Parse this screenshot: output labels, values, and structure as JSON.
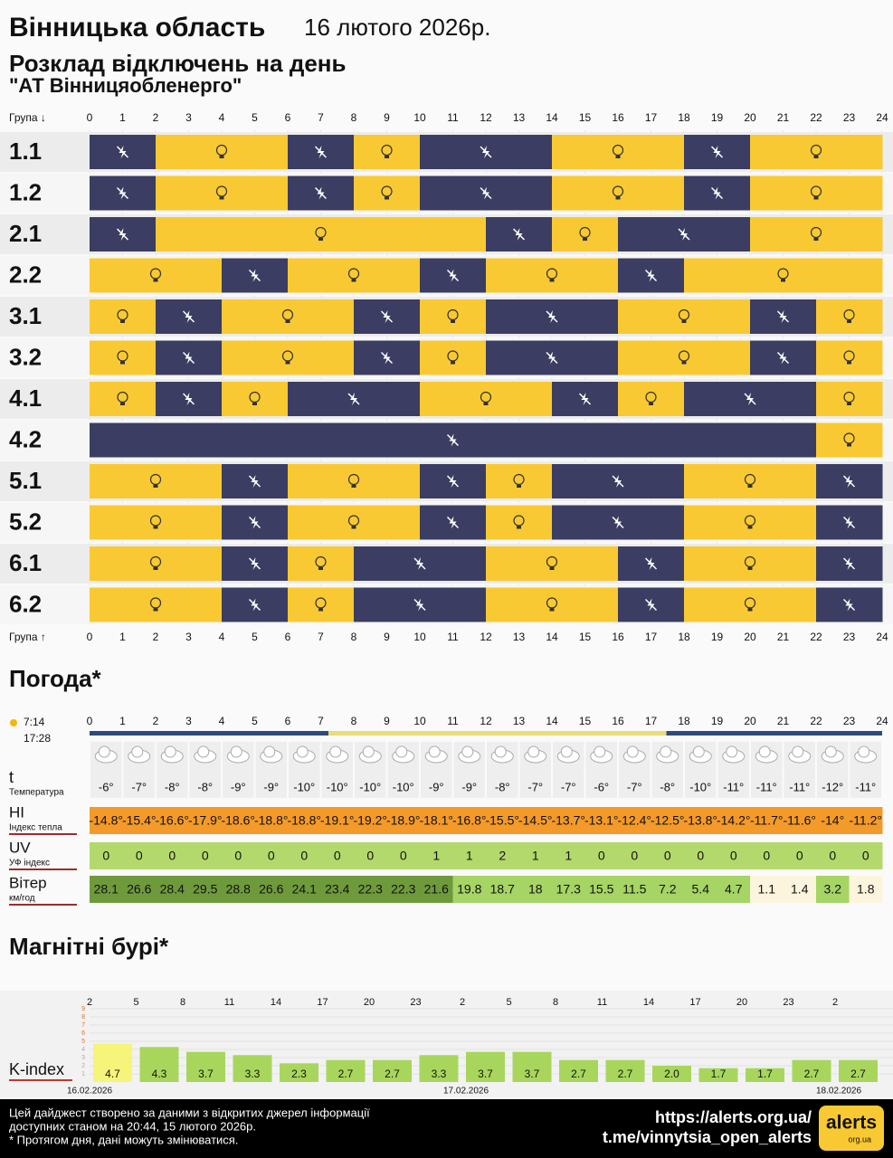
{
  "header": {
    "region": "Вінницька область",
    "date": "16 лютого 2026р.",
    "subtitle": "Розклад відключень на день",
    "company": "\"АТ Вінницяобленерго\""
  },
  "schedule": {
    "group_top": "Група ↓",
    "group_bottom": "Група ↑",
    "off_color": "#3b3d63",
    "on_color": "#f8c932",
    "hours": [
      0,
      1,
      2,
      3,
      4,
      5,
      6,
      7,
      8,
      9,
      10,
      11,
      12,
      13,
      14,
      15,
      16,
      17,
      18,
      19,
      20,
      21,
      22,
      23,
      24
    ],
    "groups": [
      {
        "name": "1.1",
        "off": [
          1,
          1,
          0,
          0,
          0,
          0,
          1,
          1,
          0,
          0,
          1,
          1,
          1,
          1,
          0,
          0,
          0,
          0,
          1,
          1,
          0,
          0,
          0,
          0
        ]
      },
      {
        "name": "1.2",
        "off": [
          1,
          1,
          0,
          0,
          0,
          0,
          1,
          1,
          0,
          0,
          1,
          1,
          1,
          1,
          0,
          0,
          0,
          0,
          1,
          1,
          0,
          0,
          0,
          0
        ]
      },
      {
        "name": "2.1",
        "off": [
          1,
          1,
          0,
          0,
          0,
          0,
          0,
          0,
          0,
          0,
          0,
          0,
          1,
          1,
          0,
          0,
          1,
          1,
          1,
          1,
          0,
          0,
          0,
          0
        ]
      },
      {
        "name": "2.2",
        "off": [
          0,
          0,
          0,
          0,
          1,
          1,
          0,
          0,
          0,
          0,
          1,
          1,
          0,
          0,
          0,
          0,
          1,
          1,
          0,
          0,
          0,
          0,
          0,
          0
        ]
      },
      {
        "name": "3.1",
        "off": [
          0,
          0,
          1,
          1,
          0,
          0,
          0,
          0,
          1,
          1,
          0,
          0,
          1,
          1,
          1,
          1,
          0,
          0,
          0,
          0,
          1,
          1,
          0,
          0
        ]
      },
      {
        "name": "3.2",
        "off": [
          0,
          0,
          1,
          1,
          0,
          0,
          0,
          0,
          1,
          1,
          0,
          0,
          1,
          1,
          1,
          1,
          0,
          0,
          0,
          0,
          1,
          1,
          0,
          0
        ]
      },
      {
        "name": "4.1",
        "off": [
          0,
          0,
          1,
          1,
          0,
          0,
          1,
          1,
          1,
          1,
          0,
          0,
          0,
          0,
          1,
          1,
          0,
          0,
          1,
          1,
          1,
          1,
          0,
          0
        ]
      },
      {
        "name": "4.2",
        "off": [
          1,
          1,
          1,
          1,
          1,
          1,
          1,
          1,
          1,
          1,
          1,
          1,
          1,
          1,
          1,
          1,
          1,
          1,
          1,
          1,
          1,
          1,
          0,
          0
        ]
      },
      {
        "name": "5.1",
        "off": [
          0,
          0,
          0,
          0,
          1,
          1,
          0,
          0,
          0,
          0,
          1,
          1,
          0,
          0,
          1,
          1,
          1,
          1,
          0,
          0,
          0,
          0,
          1,
          1
        ]
      },
      {
        "name": "5.2",
        "off": [
          0,
          0,
          0,
          0,
          1,
          1,
          0,
          0,
          0,
          0,
          1,
          1,
          0,
          0,
          1,
          1,
          1,
          1,
          0,
          0,
          0,
          0,
          1,
          1
        ]
      },
      {
        "name": "6.1",
        "off": [
          0,
          0,
          0,
          0,
          1,
          1,
          0,
          0,
          1,
          1,
          1,
          1,
          0,
          0,
          0,
          0,
          1,
          1,
          0,
          0,
          0,
          0,
          1,
          1
        ]
      },
      {
        "name": "6.2",
        "off": [
          0,
          0,
          0,
          0,
          1,
          1,
          0,
          0,
          1,
          1,
          1,
          1,
          0,
          0,
          0,
          0,
          1,
          1,
          0,
          0,
          0,
          0,
          1,
          1
        ]
      }
    ]
  },
  "weather": {
    "title": "Погода*",
    "sunrise": "7:14",
    "sunset": "17:28",
    "hours": [
      0,
      1,
      2,
      3,
      4,
      5,
      6,
      7,
      8,
      9,
      10,
      11,
      12,
      13,
      14,
      15,
      16,
      17,
      18,
      19,
      20,
      21,
      22,
      23,
      24
    ],
    "temperature": {
      "label": "t",
      "sublabel": "Температура",
      "values": [
        -6,
        -7,
        -8,
        -8,
        -9,
        -9,
        -10,
        -10,
        -10,
        -10,
        -9,
        -9,
        -8,
        -7,
        -7,
        -6,
        -7,
        -8,
        -10,
        -11,
        -11,
        -11,
        -12,
        -11
      ],
      "value_labels": [
        "-6°",
        "-7°",
        "-8°",
        "-8°",
        "-9°",
        "-9°",
        "-10°",
        "-10°",
        "-10°",
        "-10°",
        "-9°",
        "-9°",
        "-8°",
        "-7°",
        "-7°",
        "-6°",
        "-7°",
        "-8°",
        "-10°",
        "-11°",
        "-11°",
        "-11°",
        "-12°",
        "-11°"
      ]
    },
    "heat_index": {
      "label": "HI",
      "sublabel": "Індекс тепла",
      "color": "#f39a2b",
      "values": [
        -14.8,
        -15.4,
        -16.6,
        -17.9,
        -18.6,
        -18.8,
        -18.8,
        -19.1,
        -19.2,
        -18.9,
        -18.1,
        -16.8,
        -15.5,
        -14.5,
        -13.7,
        -13.1,
        -12.4,
        -12.5,
        -13.8,
        -14.2,
        -11.7,
        -11.6,
        -14,
        -11.2
      ],
      "value_labels": [
        "-14.8°",
        "-15.4°",
        "-16.6°",
        "-17.9°",
        "-18.6°",
        "-18.8°",
        "-18.8°",
        "-19.1°",
        "-19.2°",
        "-18.9°",
        "-18.1°",
        "-16.8°",
        "-15.5°",
        "-14.5°",
        "-13.7°",
        "-13.1°",
        "-12.4°",
        "-12.5°",
        "-13.8°",
        "-14.2°",
        "-11.7°",
        "-11.6°",
        "-14°",
        "-11.2°"
      ]
    },
    "uv": {
      "label": "UV",
      "sublabel": "УФ індекс",
      "color": "#b3d96c",
      "values": [
        0,
        0,
        0,
        0,
        0,
        0,
        0,
        0,
        0,
        0,
        1,
        1,
        2,
        1,
        1,
        0,
        0,
        0,
        0,
        0,
        0,
        0,
        0,
        0
      ]
    },
    "wind": {
      "label": "Вітер",
      "sublabel": "км/год",
      "values": [
        28.1,
        26.6,
        28.4,
        29.5,
        28.8,
        26.6,
        24.1,
        23.4,
        22.3,
        22.3,
        21.6,
        19.8,
        18.7,
        18,
        17.3,
        15.5,
        11.5,
        7.2,
        5.4,
        4.7,
        1.1,
        1.4,
        3.2,
        1.8
      ]
    }
  },
  "storms": {
    "title": "Магнітні бурі*",
    "label": "K-index",
    "hours": [
      2,
      5,
      8,
      11,
      14,
      17,
      20,
      23,
      2,
      5,
      8,
      11,
      14,
      17,
      20,
      23,
      2
    ],
    "dates": [
      "16.02.2026",
      "17.02.2026",
      "18.02.2026"
    ],
    "ylim": [
      0,
      9
    ],
    "yticks": [
      1,
      2,
      3,
      4,
      5,
      6,
      7,
      8,
      9
    ],
    "values": [
      4.7,
      4.3,
      3.7,
      3.3,
      2.3,
      2.7,
      2.7,
      3.3,
      3.7,
      3.7,
      2.7,
      2.7,
      2.0,
      1.7,
      1.7,
      2.7,
      2.7
    ],
    "value_labels": [
      "4.7",
      "4.3",
      "3.7",
      "3.3",
      "2.3",
      "2.7",
      "2.7",
      "3.3",
      "3.7",
      "3.7",
      "2.7",
      "2.7",
      "2.0",
      "1.7",
      "1.7",
      "2.7",
      "2.7"
    ],
    "colors": [
      "#f7f47a",
      "#a8d65c",
      "#a8d65c",
      "#a8d65c",
      "#a8d65c",
      "#a8d65c",
      "#a8d65c",
      "#a8d65c",
      "#a8d65c",
      "#a8d65c",
      "#a8d65c",
      "#a8d65c",
      "#a8d65c",
      "#a8d65c",
      "#a8d65c",
      "#a8d65c",
      "#a8d65c"
    ]
  },
  "footer": {
    "lines": [
      "Цей дайджест створено за даними з відкритих джерел інформації",
      "доступних станом на 20:44, 15 лютого 2026р.",
      "* Протягом дня, дані можуть змінюватися."
    ],
    "url": "https://alerts.org.ua/",
    "telegram": "t.me/vinnytsia_open_alerts",
    "logo": "alerts",
    "logo_sub": "org.ua"
  }
}
